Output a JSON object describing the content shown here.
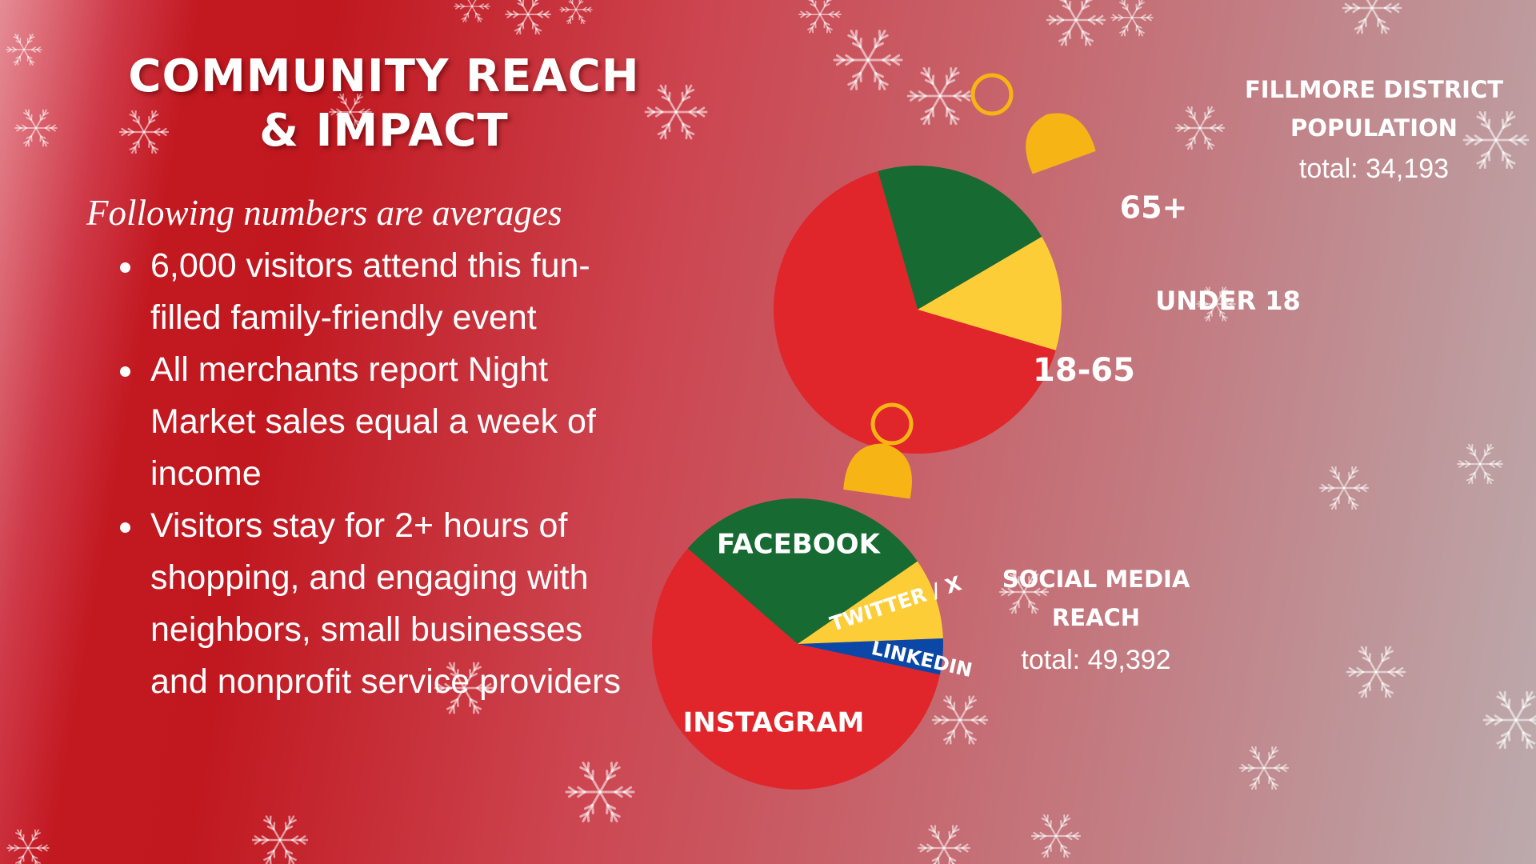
{
  "title": {
    "line1": "COMMUNITY REACH",
    "line2": "& IMPACT"
  },
  "subtitle": "Following numbers are averages",
  "bullets": [
    "6,000 visitors attend this fun-filled family-friendly event",
    "All merchants report Night Market sales equal a week of income",
    "Visitors stay for 2+ hours of shopping, and engaging with neighbors, small businesses and nonprofit service providers"
  ],
  "population": {
    "heading_line1": "FILLMORE DISTRICT",
    "heading_line2": "POPULATION",
    "total": "total: 34,193"
  },
  "social": {
    "heading_line1": "SOCIAL MEDIA",
    "heading_line2": "REACH",
    "total": "total: 49,392"
  },
  "colors": {
    "red": "#e0262b",
    "green": "#176a31",
    "yellow": "#fdcd38",
    "blue": "#0a47a6",
    "ornament_cap": "#f6b415"
  },
  "chart_data": [
    {
      "type": "pie",
      "title": "FILLMORE DISTRICT POPULATION",
      "total": 34193,
      "categories": [
        "65+",
        "UNDER 18",
        "18-65"
      ],
      "values": [
        0.21,
        0.13,
        0.66
      ],
      "colors": [
        "#176a31",
        "#fdcd38",
        "#e0262b"
      ]
    },
    {
      "type": "pie",
      "title": "SOCIAL MEDIA REACH",
      "total": 49392,
      "categories": [
        "FACEBOOK",
        "TWITTER / X",
        "LINKEDIN",
        "INSTAGRAM"
      ],
      "values": [
        0.29,
        0.09,
        0.04,
        0.58
      ],
      "colors": [
        "#176a31",
        "#fdcd38",
        "#0a47a6",
        "#e0262b"
      ]
    }
  ]
}
